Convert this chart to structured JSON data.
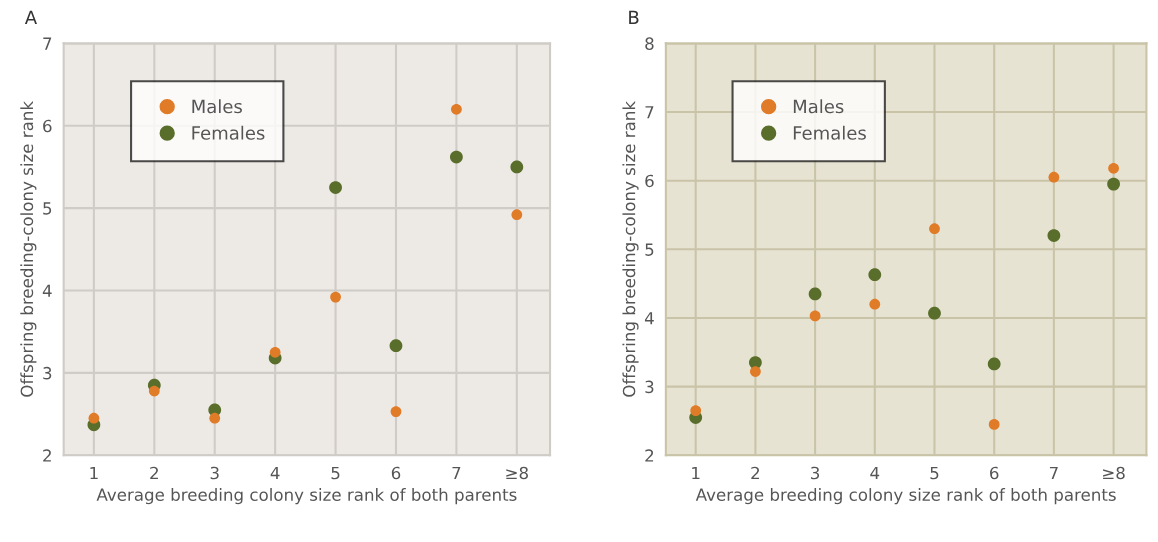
{
  "chart_data": [
    {
      "type": "scatter",
      "title": "A",
      "xlabel": "Average breeding colony size rank of both parents",
      "ylabel": "Offspring breeding-colony size rank",
      "categories": [
        "1",
        "2",
        "3",
        "4",
        "5",
        "6",
        "7",
        "≥8"
      ],
      "series": [
        {
          "name": "Males",
          "color": "#e07b28",
          "values": [
            2.45,
            2.78,
            2.45,
            3.25,
            3.92,
            2.53,
            6.2,
            4.92
          ]
        },
        {
          "name": "Females",
          "color": "#5a6e2c",
          "values": [
            2.37,
            2.85,
            2.55,
            3.18,
            5.25,
            3.33,
            5.62,
            5.5
          ]
        }
      ],
      "ylim": [
        2,
        7
      ],
      "yticks": [
        2,
        3,
        4,
        5,
        6,
        7
      ],
      "grid": true,
      "legend": "top left",
      "marker": "circle"
    },
    {
      "type": "scatter",
      "title": "B",
      "xlabel": "Average breeding colony size rank of both parents",
      "ylabel": "Offspring breeding-colony size rank",
      "categories": [
        "1",
        "2",
        "3",
        "4",
        "5",
        "6",
        "7",
        "≥8"
      ],
      "series": [
        {
          "name": "Males",
          "color": "#e07b28",
          "values": [
            2.65,
            3.22,
            4.03,
            4.2,
            5.3,
            2.45,
            6.05,
            6.18
          ]
        },
        {
          "name": "Females",
          "color": "#5a6e2c",
          "values": [
            2.55,
            3.35,
            4.35,
            4.63,
            4.07,
            3.33,
            5.2,
            5.95
          ]
        }
      ],
      "ylim": [
        2,
        8
      ],
      "yticks": [
        2,
        3,
        4,
        5,
        6,
        7,
        8
      ],
      "grid": true,
      "legend": "top left",
      "marker": "circle"
    }
  ]
}
